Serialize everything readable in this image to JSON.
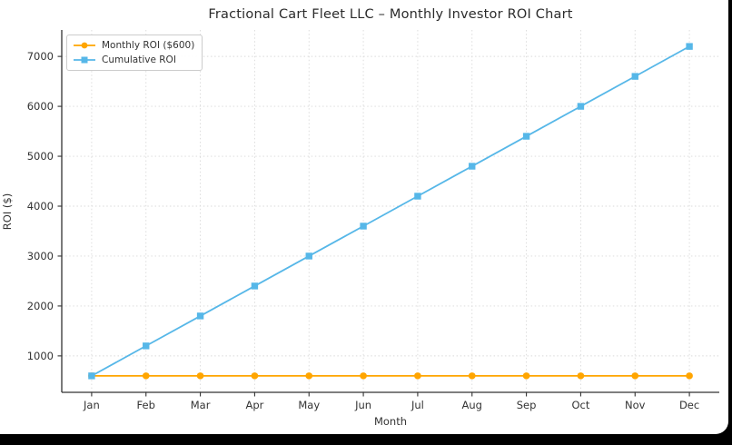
{
  "window": {
    "frame_color": "#000000",
    "canvas_color": "#ffffff"
  },
  "chart_data": {
    "type": "line",
    "title": "Fractional Cart Fleet LLC – Monthly Investor ROI Chart",
    "xlabel": "Month",
    "ylabel": "ROI ($)",
    "categories": [
      "Jan",
      "Feb",
      "Mar",
      "Apr",
      "May",
      "Jun",
      "Jul",
      "Aug",
      "Sep",
      "Oct",
      "Nov",
      "Dec"
    ],
    "series": [
      {
        "name": "Monthly ROI ($600)",
        "color": "#FFA500",
        "marker": "circle",
        "values": [
          600,
          600,
          600,
          600,
          600,
          600,
          600,
          600,
          600,
          600,
          600,
          600
        ]
      },
      {
        "name": "Cumulative ROI",
        "color": "#56B7E8",
        "marker": "square",
        "values": [
          600,
          1200,
          1800,
          2400,
          3000,
          3600,
          4200,
          4800,
          5400,
          6000,
          6600,
          7200
        ]
      }
    ],
    "yticks": [
      1000,
      2000,
      3000,
      4000,
      5000,
      6000,
      7000
    ],
    "ylim": [
      270,
      7530
    ],
    "grid": true,
    "grid_style": "dotted",
    "grid_color": "#d9d9d9",
    "axis_color": "#333333",
    "legend_position": "upper left"
  }
}
